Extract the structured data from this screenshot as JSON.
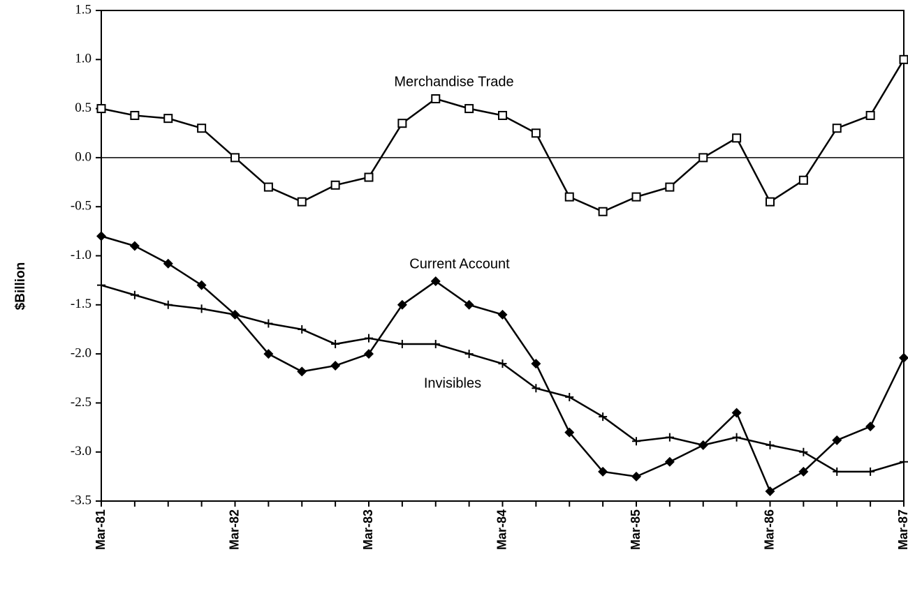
{
  "chart_data": {
    "type": "line",
    "y_label": "$Billion",
    "categories": [
      "Mar-81",
      null,
      null,
      null,
      "Mar-82",
      null,
      null,
      null,
      "Mar-83",
      null,
      null,
      null,
      "Mar-84",
      null,
      null,
      null,
      "Mar-85",
      null,
      null,
      null,
      "Mar-86",
      null,
      null,
      null,
      "Mar-87"
    ],
    "ylim": [
      -3.5,
      1.5
    ],
    "yticks": [
      1.5,
      {
        "value": 1,
        "label": "1.0"
      },
      0.5,
      {
        "value": 0,
        "label": "0.0"
      },
      -0.5,
      {
        "value": -1,
        "label": "-1.0"
      },
      -1.5,
      {
        "value": -2,
        "label": "-2.0"
      },
      -2.5,
      {
        "value": -3,
        "label": "-3.0"
      },
      -3.5
    ],
    "series": [
      {
        "name": "Merchandise Trade",
        "color": "#000000",
        "marker": "square",
        "values": [
          0.5,
          0.43,
          0.4,
          0.3,
          0.0,
          -0.3,
          -0.45,
          -0.28,
          -0.2,
          0.35,
          0.6,
          0.5,
          0.43,
          0.25,
          -0.4,
          -0.55,
          -0.4,
          -0.3,
          0.0,
          0.2,
          -0.45,
          -0.23,
          0.3,
          0.43,
          1.0
        ]
      },
      {
        "name": "Current Account",
        "color": "#000000",
        "marker": "diamond",
        "values": [
          -0.8,
          -0.9,
          -1.08,
          -1.3,
          -1.6,
          -2.0,
          -2.18,
          -2.12,
          -2.0,
          -1.5,
          -1.26,
          -1.5,
          -1.6,
          -2.1,
          -2.8,
          -3.2,
          -3.25,
          -3.1,
          -2.93,
          -2.6,
          -3.4,
          -3.2,
          -2.88,
          -2.74,
          -2.04
        ]
      },
      {
        "name": "Invisibles",
        "color": "#000000",
        "marker": "plus",
        "values": [
          -1.3,
          -1.4,
          -1.5,
          -1.54,
          -1.6,
          -1.69,
          -1.75,
          -1.9,
          -1.84,
          -1.9,
          -1.9,
          -2.0,
          -2.1,
          -2.35,
          -2.44,
          -2.64,
          -2.89,
          -2.85,
          -2.93,
          -2.85,
          -2.93,
          -3.0,
          -3.2,
          -3.2,
          -3.1
        ]
      }
    ]
  }
}
